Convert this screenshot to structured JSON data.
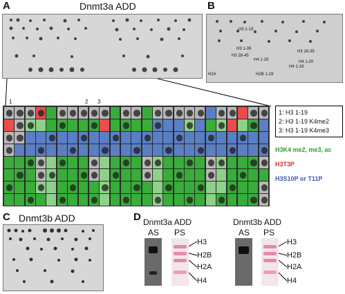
{
  "panels": {
    "a": {
      "label": "A",
      "title": "Dnmt3a ADD"
    },
    "b": {
      "label": "B",
      "labels": [
        "H3 1-19",
        "H3 1-39",
        "H3 16-35",
        "H3 26-45",
        "H4 1-19",
        "H4 1-20",
        "H4 1-18",
        "H2A",
        "H2B 1-19"
      ]
    },
    "c": {
      "label": "C",
      "title": "Dnmt3b ADD"
    },
    "d": {
      "label": "D",
      "blot1": {
        "title": "Dnmt3a ADD",
        "as": "AS",
        "ps": "PS"
      },
      "blot2": {
        "title": "Dnmt3b ADD",
        "as": "AS",
        "ps": "PS"
      },
      "bands": [
        "H3",
        "H2B",
        "H2A",
        "H4"
      ]
    }
  },
  "grid": {
    "column_marks": [
      "1",
      "2",
      "3"
    ],
    "key": [
      "1: H3 1-19",
      "2: H3 1-19 K4me2",
      "3: H3 1-19 K4me3"
    ],
    "legend": [
      {
        "label": "H3K4 me2, me3, ac",
        "color": "#2e9e2e"
      },
      {
        "label": "H3T3P",
        "color": "#d6302a"
      },
      {
        "label": "H3S10P or T11P",
        "color": "#3a5aa8"
      }
    ],
    "colors": {
      "G": "#38ad3a",
      "L": "#8fd08a",
      "R": "#ee4b4b",
      "B": "#5b7fc4",
      "W": "#b9b9b9"
    },
    "rows": [
      "WWWRGWWWWWGWWGWWWWWBWWRWW",
      "RWLLGGGGGRGGGGBBBLBGLRLGB",
      "WWBBBBBBBBBBBBBBBBBBBBBBB",
      "WBBBBBBBBBBBBBBBBBBBBBBBB",
      "GGGWLGGGWLGGGWLGGGGWLGGGW",
      "GGGWLGGGWLGGGWLGGGGWLGGGG",
      "GGGLLGGGGLGGGGLGGGGLLGGGW",
      "GGGGLGGGGLGGGGLGGGGLGGGGW"
    ]
  }
}
